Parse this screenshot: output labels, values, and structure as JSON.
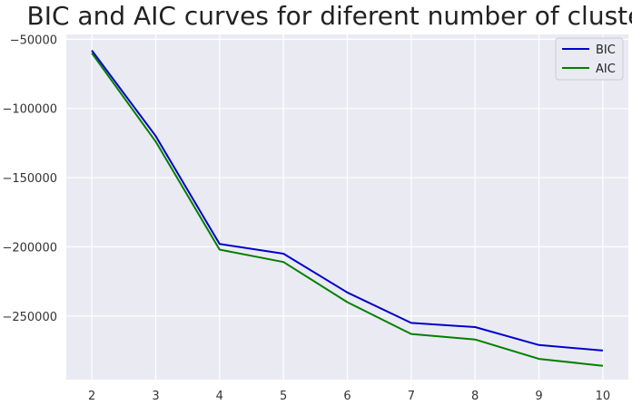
{
  "chart_data": {
    "type": "line",
    "title": "BIC and AIC curves for diferent number of clusters",
    "xlabel": "",
    "ylabel": "",
    "x": [
      2,
      3,
      4,
      5,
      6,
      7,
      8,
      9,
      10
    ],
    "xlim": [
      1.6,
      10.4
    ],
    "ylim": [
      -296000,
      -46500
    ],
    "yticks": [
      -50000,
      -100000,
      -150000,
      -200000,
      -250000
    ],
    "ytick_labels": [
      "−50000",
      "−100000",
      "−150000",
      "−200000",
      "−250000"
    ],
    "grid": true,
    "legend_position": "top-right",
    "background": "#eaeaf2",
    "series": [
      {
        "name": "BIC",
        "color": "#0000cc",
        "values": [
          -58000,
          -120000,
          -198000,
          -205000,
          -233000,
          -255000,
          -258000,
          -271000,
          -275000
        ]
      },
      {
        "name": "AIC",
        "color": "#008000",
        "values": [
          -60000,
          -124000,
          -202000,
          -211000,
          -240000,
          -263000,
          -267000,
          -281000,
          -286000
        ]
      }
    ]
  }
}
